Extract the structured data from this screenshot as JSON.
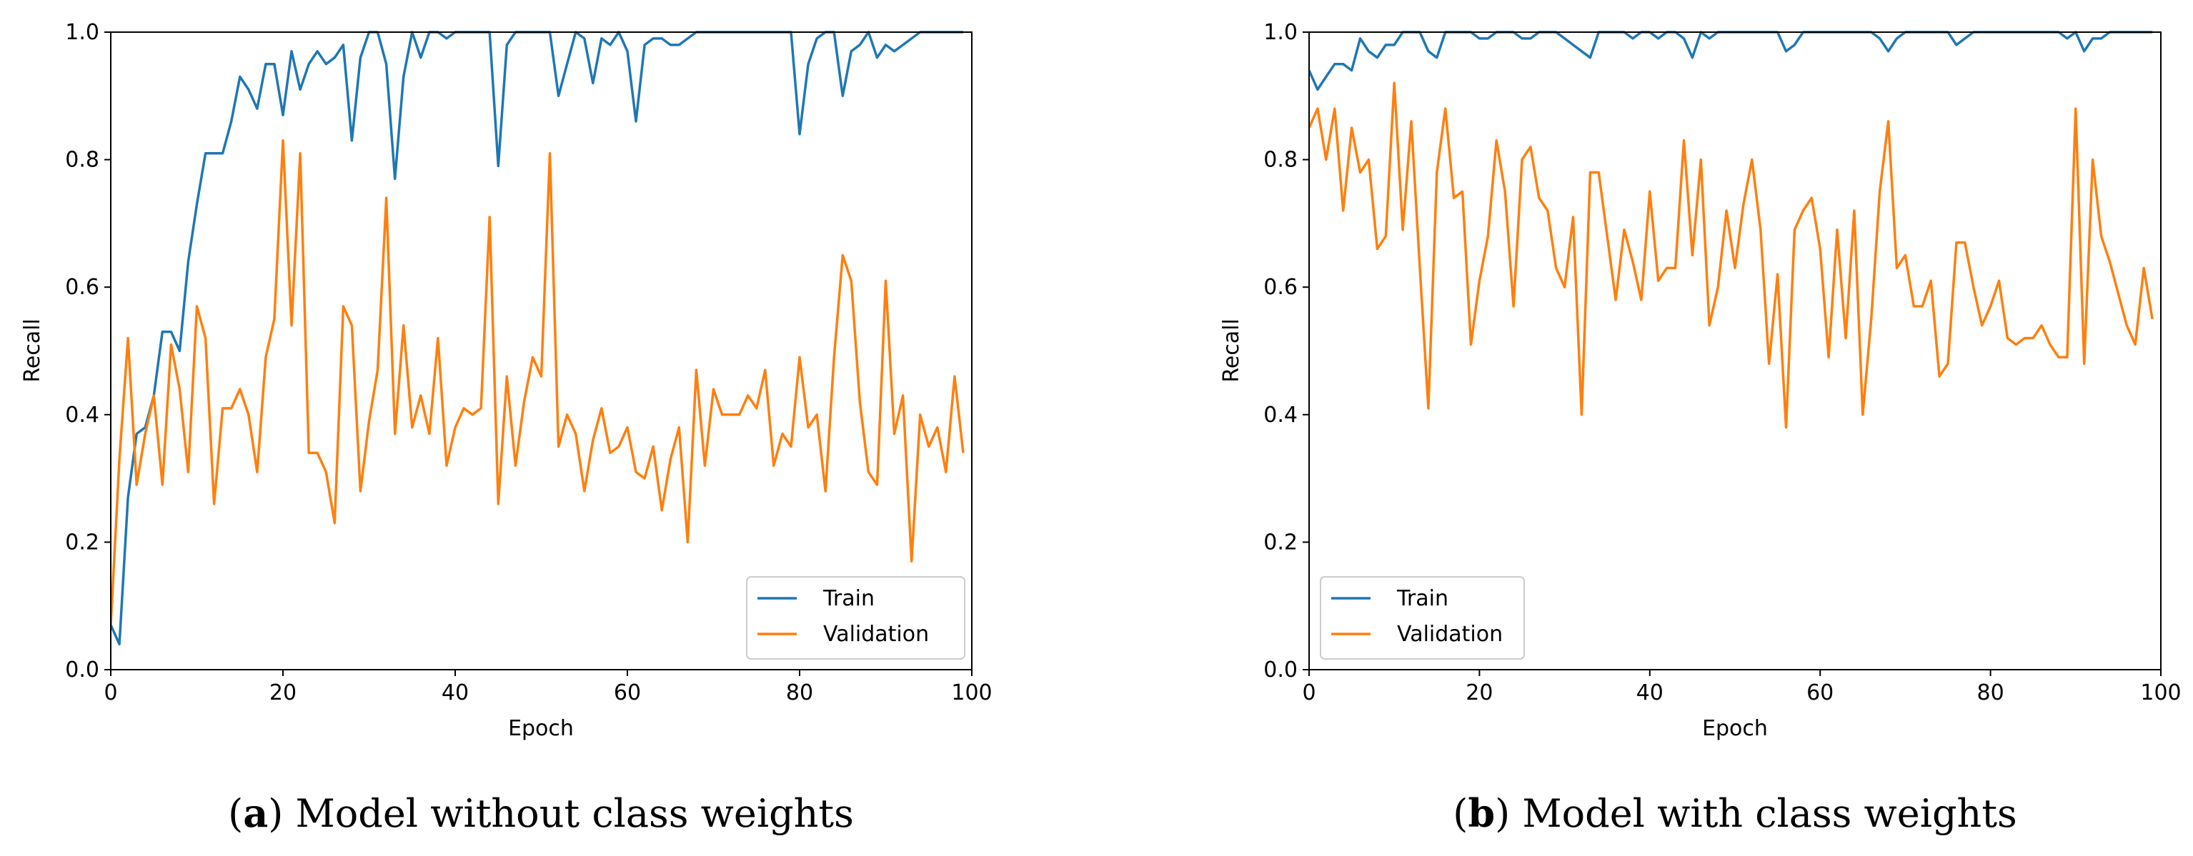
{
  "chart_data": [
    {
      "type": "line",
      "caption_letter": "a",
      "caption_text": "Model without class weights",
      "xlabel": "Epoch",
      "ylabel": "Recall",
      "xlim": [
        0,
        100
      ],
      "ylim": [
        0.0,
        1.0
      ],
      "xticks": [
        "0",
        "20",
        "40",
        "60",
        "80",
        "100"
      ],
      "yticks": [
        "0.0",
        "0.2",
        "0.4",
        "0.6",
        "0.8",
        "1.0"
      ],
      "legend_position": "lower-right",
      "series": [
        {
          "name": "Train",
          "color": "#1f77b4",
          "values": [
            0.07,
            0.04,
            0.27,
            0.37,
            0.38,
            0.43,
            0.53,
            0.53,
            0.5,
            0.64,
            0.73,
            0.81,
            0.81,
            0.81,
            0.86,
            0.93,
            0.91,
            0.88,
            0.95,
            0.95,
            0.87,
            0.97,
            0.91,
            0.95,
            0.97,
            0.95,
            0.96,
            0.98,
            0.83,
            0.96,
            1.0,
            1.0,
            0.95,
            0.77,
            0.93,
            1.0,
            0.96,
            1.0,
            1.0,
            0.99,
            1.0,
            1.0,
            1.0,
            1.0,
            1.0,
            0.79,
            0.98,
            1.0,
            1.0,
            1.0,
            1.0,
            1.0,
            0.9,
            0.95,
            1.0,
            0.99,
            0.92,
            0.99,
            0.98,
            1.0,
            0.97,
            0.86,
            0.98,
            0.99,
            0.99,
            0.98,
            0.98,
            0.99,
            1.0,
            1.0,
            1.0,
            1.0,
            1.0,
            1.0,
            1.0,
            1.0,
            1.0,
            1.0,
            1.0,
            1.0,
            0.84,
            0.95,
            0.99,
            1.0,
            1.0,
            0.9,
            0.97,
            0.98,
            1.0,
            0.96,
            0.98,
            0.97,
            0.98,
            0.99,
            1.0,
            1.0,
            1.0,
            1.0,
            1.0,
            1.0
          ]
        },
        {
          "name": "Validation",
          "color": "#ff7f0e",
          "values": [
            0.07,
            0.33,
            0.52,
            0.29,
            0.37,
            0.43,
            0.29,
            0.51,
            0.44,
            0.31,
            0.57,
            0.52,
            0.26,
            0.41,
            0.41,
            0.44,
            0.4,
            0.31,
            0.49,
            0.55,
            0.83,
            0.54,
            0.81,
            0.34,
            0.34,
            0.31,
            0.23,
            0.57,
            0.54,
            0.28,
            0.39,
            0.47,
            0.74,
            0.37,
            0.54,
            0.38,
            0.43,
            0.37,
            0.52,
            0.32,
            0.38,
            0.41,
            0.4,
            0.41,
            0.71,
            0.26,
            0.46,
            0.32,
            0.42,
            0.49,
            0.46,
            0.81,
            0.35,
            0.4,
            0.37,
            0.28,
            0.36,
            0.41,
            0.34,
            0.35,
            0.38,
            0.31,
            0.3,
            0.35,
            0.25,
            0.33,
            0.38,
            0.2,
            0.47,
            0.32,
            0.44,
            0.4,
            0.4,
            0.4,
            0.43,
            0.41,
            0.47,
            0.32,
            0.37,
            0.35,
            0.49,
            0.38,
            0.4,
            0.28,
            0.49,
            0.65,
            0.61,
            0.42,
            0.31,
            0.29,
            0.61,
            0.37,
            0.43,
            0.17,
            0.4,
            0.35,
            0.38,
            0.31,
            0.46,
            0.34
          ]
        }
      ]
    },
    {
      "type": "line",
      "caption_letter": "b",
      "caption_text": "Model with class weights",
      "xlabel": "Epoch",
      "ylabel": "Recall",
      "xlim": [
        0,
        100
      ],
      "ylim": [
        0.0,
        1.0
      ],
      "xticks": [
        "0",
        "20",
        "40",
        "60",
        "80",
        "100"
      ],
      "yticks": [
        "0.0",
        "0.2",
        "0.4",
        "0.6",
        "0.8",
        "1.0"
      ],
      "legend_position": "lower-left",
      "series": [
        {
          "name": "Train",
          "color": "#1f77b4",
          "values": [
            0.94,
            0.91,
            0.93,
            0.95,
            0.95,
            0.94,
            0.99,
            0.97,
            0.96,
            0.98,
            0.98,
            1.0,
            1.0,
            1.0,
            0.97,
            0.96,
            1.0,
            1.0,
            1.0,
            1.0,
            0.99,
            0.99,
            1.0,
            1.0,
            1.0,
            0.99,
            0.99,
            1.0,
            1.0,
            1.0,
            0.99,
            0.98,
            0.97,
            0.96,
            1.0,
            1.0,
            1.0,
            1.0,
            0.99,
            1.0,
            1.0,
            0.99,
            1.0,
            1.0,
            0.99,
            0.96,
            1.0,
            0.99,
            1.0,
            1.0,
            1.0,
            1.0,
            1.0,
            1.0,
            1.0,
            1.0,
            0.97,
            0.98,
            1.0,
            1.0,
            1.0,
            1.0,
            1.0,
            1.0,
            1.0,
            1.0,
            1.0,
            0.99,
            0.97,
            0.99,
            1.0,
            1.0,
            1.0,
            1.0,
            1.0,
            1.0,
            0.98,
            0.99,
            1.0,
            1.0,
            1.0,
            1.0,
            1.0,
            1.0,
            1.0,
            1.0,
            1.0,
            1.0,
            1.0,
            0.99,
            1.0,
            0.97,
            0.99,
            0.99,
            1.0,
            1.0,
            1.0,
            1.0,
            1.0,
            1.0
          ]
        },
        {
          "name": "Validation",
          "color": "#ff7f0e",
          "values": [
            0.85,
            0.88,
            0.8,
            0.88,
            0.72,
            0.85,
            0.78,
            0.8,
            0.66,
            0.68,
            0.92,
            0.69,
            0.86,
            0.63,
            0.41,
            0.78,
            0.88,
            0.74,
            0.75,
            0.51,
            0.61,
            0.68,
            0.83,
            0.75,
            0.57,
            0.8,
            0.82,
            0.74,
            0.72,
            0.63,
            0.6,
            0.71,
            0.4,
            0.78,
            0.78,
            0.68,
            0.58,
            0.69,
            0.64,
            0.58,
            0.75,
            0.61,
            0.63,
            0.63,
            0.83,
            0.65,
            0.8,
            0.54,
            0.6,
            0.72,
            0.63,
            0.73,
            0.8,
            0.69,
            0.48,
            0.62,
            0.38,
            0.69,
            0.72,
            0.74,
            0.66,
            0.49,
            0.69,
            0.52,
            0.72,
            0.4,
            0.55,
            0.75,
            0.86,
            0.63,
            0.65,
            0.57,
            0.57,
            0.61,
            0.46,
            0.48,
            0.67,
            0.67,
            0.6,
            0.54,
            0.57,
            0.61,
            0.52,
            0.51,
            0.52,
            0.52,
            0.54,
            0.51,
            0.49,
            0.49,
            0.88,
            0.48,
            0.8,
            0.68,
            0.64,
            0.59,
            0.54,
            0.51,
            0.63,
            0.55
          ]
        }
      ]
    }
  ]
}
